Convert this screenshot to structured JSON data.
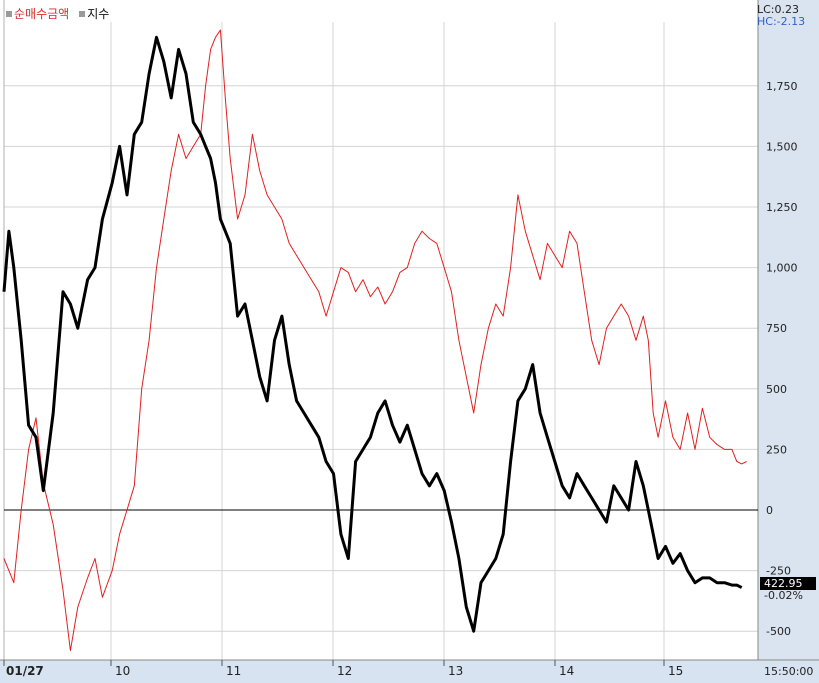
{
  "legend": [
    {
      "label": "순매수금액",
      "color": "#d92b2b"
    },
    {
      "label": "지수",
      "color": "#111111"
    }
  ],
  "lc_label": "LC:0.23",
  "hc_label": "HC:-2.13",
  "current_value": "422.95",
  "current_change": "-0.02%",
  "time_label": "15:50:00",
  "colors": {
    "net_buy": "#e02020",
    "index": "#000000",
    "grid": "#d4d4d4",
    "axis_bg": "#dae4f0",
    "xaxis_bg": "#d7e3f1"
  },
  "chart_data": {
    "type": "line",
    "x_labels": [
      "01/27",
      "10",
      "11",
      "12",
      "13",
      "14",
      "15"
    ],
    "y_ticks": [
      -500,
      -250,
      0,
      250,
      500,
      750,
      1000,
      1250,
      1500,
      1750
    ],
    "y_tick_labels": [
      "-500",
      "-250",
      "0",
      "250",
      "500",
      "750",
      "1,000",
      "1,250",
      "1,500",
      "1,750"
    ],
    "ylim": [
      -550,
      2000
    ],
    "series": [
      {
        "name": "순매수금액",
        "color": "#e02020",
        "points": [
          [
            0.0,
            -200
          ],
          [
            0.2,
            -250
          ],
          [
            0.4,
            -300
          ],
          [
            0.7,
            0
          ],
          [
            1.0,
            250
          ],
          [
            1.3,
            380
          ],
          [
            1.6,
            110
          ],
          [
            2.0,
            -60
          ],
          [
            2.4,
            -330
          ],
          [
            2.7,
            -580
          ],
          [
            3.0,
            -400
          ],
          [
            3.4,
            -280
          ],
          [
            3.7,
            -200
          ],
          [
            4.0,
            -360
          ],
          [
            4.4,
            -250
          ],
          [
            4.7,
            -100
          ],
          [
            5.0,
            0
          ],
          [
            5.3,
            100
          ],
          [
            5.6,
            500
          ],
          [
            5.9,
            700
          ],
          [
            6.2,
            1000
          ],
          [
            6.5,
            1200
          ],
          [
            6.8,
            1400
          ],
          [
            7.1,
            1550
          ],
          [
            7.4,
            1450
          ],
          [
            7.7,
            1500
          ],
          [
            8.0,
            1550
          ],
          [
            8.2,
            1750
          ],
          [
            8.4,
            1900
          ],
          [
            8.6,
            1950
          ],
          [
            8.8,
            1980
          ],
          [
            9.0,
            1700
          ],
          [
            9.2,
            1450
          ],
          [
            9.5,
            1200
          ],
          [
            9.8,
            1300
          ],
          [
            10.1,
            1550
          ],
          [
            10.4,
            1400
          ],
          [
            10.7,
            1300
          ],
          [
            11.0,
            1250
          ],
          [
            11.3,
            1200
          ],
          [
            11.6,
            1100
          ],
          [
            11.9,
            1050
          ],
          [
            12.2,
            1000
          ],
          [
            12.5,
            950
          ],
          [
            12.8,
            900
          ],
          [
            13.1,
            800
          ],
          [
            13.4,
            900
          ],
          [
            13.7,
            1000
          ],
          [
            14.0,
            980
          ],
          [
            14.3,
            900
          ],
          [
            14.6,
            950
          ],
          [
            14.9,
            880
          ],
          [
            15.2,
            920
          ],
          [
            15.5,
            850
          ],
          [
            15.8,
            900
          ],
          [
            16.1,
            980
          ],
          [
            16.4,
            1000
          ],
          [
            16.7,
            1100
          ],
          [
            17.0,
            1150
          ],
          [
            17.3,
            1120
          ],
          [
            17.6,
            1100
          ],
          [
            17.9,
            1000
          ],
          [
            18.2,
            900
          ],
          [
            18.5,
            700
          ],
          [
            18.8,
            550
          ],
          [
            19.1,
            400
          ],
          [
            19.4,
            600
          ],
          [
            19.7,
            750
          ],
          [
            20.0,
            850
          ],
          [
            20.3,
            800
          ],
          [
            20.6,
            1000
          ],
          [
            20.9,
            1300
          ],
          [
            21.2,
            1150
          ],
          [
            21.5,
            1050
          ],
          [
            21.8,
            950
          ],
          [
            22.1,
            1100
          ],
          [
            22.4,
            1050
          ],
          [
            22.7,
            1000
          ],
          [
            23.0,
            1150
          ],
          [
            23.3,
            1100
          ],
          [
            23.6,
            900
          ],
          [
            23.9,
            700
          ],
          [
            24.2,
            600
          ],
          [
            24.5,
            750
          ],
          [
            24.8,
            800
          ],
          [
            25.1,
            850
          ],
          [
            25.4,
            800
          ],
          [
            25.7,
            700
          ],
          [
            26.0,
            800
          ],
          [
            26.2,
            700
          ],
          [
            26.4,
            400
          ],
          [
            26.6,
            300
          ],
          [
            26.9,
            450
          ],
          [
            27.2,
            300
          ],
          [
            27.5,
            250
          ],
          [
            27.8,
            400
          ],
          [
            28.1,
            250
          ],
          [
            28.4,
            420
          ],
          [
            28.7,
            300
          ],
          [
            29.0,
            270
          ],
          [
            29.3,
            250
          ],
          [
            29.6,
            250
          ],
          [
            29.8,
            200
          ],
          [
            30.0,
            190
          ],
          [
            30.2,
            200
          ]
        ]
      },
      {
        "name": "지수",
        "color": "#000000",
        "points": [
          [
            0.0,
            900
          ],
          [
            0.2,
            1150
          ],
          [
            0.4,
            1000
          ],
          [
            0.7,
            700
          ],
          [
            1.0,
            350
          ],
          [
            1.3,
            300
          ],
          [
            1.6,
            80
          ],
          [
            2.0,
            400
          ],
          [
            2.4,
            900
          ],
          [
            2.7,
            850
          ],
          [
            3.0,
            750
          ],
          [
            3.4,
            950
          ],
          [
            3.7,
            1000
          ],
          [
            4.0,
            1200
          ],
          [
            4.4,
            1350
          ],
          [
            4.7,
            1500
          ],
          [
            5.0,
            1300
          ],
          [
            5.3,
            1550
          ],
          [
            5.6,
            1600
          ],
          [
            5.9,
            1800
          ],
          [
            6.2,
            1950
          ],
          [
            6.5,
            1850
          ],
          [
            6.8,
            1700
          ],
          [
            7.1,
            1900
          ],
          [
            7.4,
            1800
          ],
          [
            7.7,
            1600
          ],
          [
            8.0,
            1550
          ],
          [
            8.2,
            1500
          ],
          [
            8.4,
            1450
          ],
          [
            8.6,
            1350
          ],
          [
            8.8,
            1200
          ],
          [
            9.0,
            1150
          ],
          [
            9.2,
            1100
          ],
          [
            9.5,
            800
          ],
          [
            9.8,
            850
          ],
          [
            10.1,
            700
          ],
          [
            10.4,
            550
          ],
          [
            10.7,
            450
          ],
          [
            11.0,
            700
          ],
          [
            11.3,
            800
          ],
          [
            11.6,
            600
          ],
          [
            11.9,
            450
          ],
          [
            12.2,
            400
          ],
          [
            12.5,
            350
          ],
          [
            12.8,
            300
          ],
          [
            13.1,
            200
          ],
          [
            13.4,
            150
          ],
          [
            13.7,
            -100
          ],
          [
            14.0,
            -200
          ],
          [
            14.3,
            200
          ],
          [
            14.6,
            250
          ],
          [
            14.9,
            300
          ],
          [
            15.2,
            400
          ],
          [
            15.5,
            450
          ],
          [
            15.8,
            350
          ],
          [
            16.1,
            280
          ],
          [
            16.4,
            350
          ],
          [
            16.7,
            250
          ],
          [
            17.0,
            150
          ],
          [
            17.3,
            100
          ],
          [
            17.6,
            150
          ],
          [
            17.9,
            80
          ],
          [
            18.2,
            -50
          ],
          [
            18.5,
            -200
          ],
          [
            18.8,
            -400
          ],
          [
            19.1,
            -500
          ],
          [
            19.4,
            -300
          ],
          [
            19.7,
            -250
          ],
          [
            20.0,
            -200
          ],
          [
            20.3,
            -100
          ],
          [
            20.6,
            200
          ],
          [
            20.9,
            450
          ],
          [
            21.2,
            500
          ],
          [
            21.5,
            600
          ],
          [
            21.8,
            400
          ],
          [
            22.1,
            300
          ],
          [
            22.4,
            200
          ],
          [
            22.7,
            100
          ],
          [
            23.0,
            50
          ],
          [
            23.3,
            150
          ],
          [
            23.6,
            100
          ],
          [
            23.9,
            50
          ],
          [
            24.2,
            0
          ],
          [
            24.5,
            -50
          ],
          [
            24.8,
            100
          ],
          [
            25.1,
            50
          ],
          [
            25.4,
            0
          ],
          [
            25.7,
            200
          ],
          [
            26.0,
            100
          ],
          [
            26.2,
            0
          ],
          [
            26.4,
            -100
          ],
          [
            26.6,
            -200
          ],
          [
            26.9,
            -150
          ],
          [
            27.2,
            -220
          ],
          [
            27.5,
            -180
          ],
          [
            27.8,
            -250
          ],
          [
            28.1,
            -300
          ],
          [
            28.4,
            -280
          ],
          [
            28.7,
            -280
          ],
          [
            29.0,
            -300
          ],
          [
            29.3,
            -300
          ],
          [
            29.6,
            -310
          ],
          [
            29.8,
            -310
          ],
          [
            30.0,
            -320
          ]
        ]
      }
    ]
  }
}
